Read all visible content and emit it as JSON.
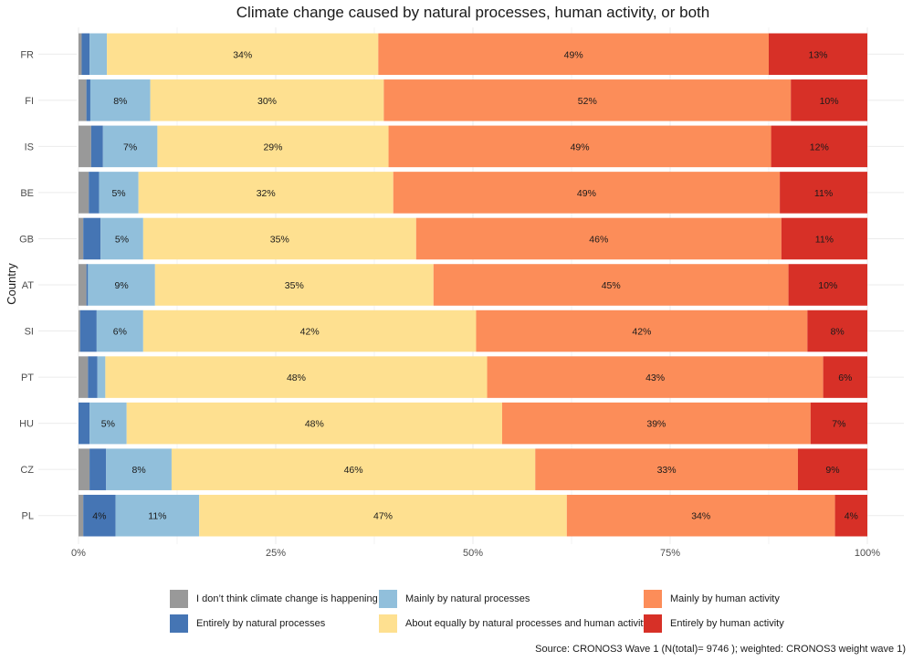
{
  "chart_data": {
    "type": "bar",
    "orientation": "horizontal",
    "stacked": true,
    "title": "Climate change caused by natural processes, human activity, or both",
    "xlabel": "",
    "ylabel": "Country",
    "xlim": [
      0,
      100
    ],
    "x_ticks": [
      "0%",
      "25%",
      "50%",
      "75%",
      "100%"
    ],
    "x_tick_values": [
      0,
      25,
      50,
      75,
      100
    ],
    "grid": true,
    "legend_position": "bottom",
    "categories": [
      "FR",
      "FI",
      "IS",
      "BE",
      "GB",
      "AT",
      "SI",
      "PT",
      "HU",
      "CZ",
      "PL"
    ],
    "series": [
      {
        "name": "I don't think climate change is happening",
        "color": "#999999",
        "values": [
          0.4,
          1.0,
          1.6,
          1.3,
          0.6,
          1.0,
          0.2,
          1.2,
          0.0,
          1.4,
          0.6
        ],
        "labels": [
          "",
          "",
          "",
          "",
          "",
          "",
          "",
          "",
          "",
          "",
          ""
        ]
      },
      {
        "name": "Entirely by natural processes",
        "color": "#4575b4",
        "values": [
          1.0,
          0.5,
          1.5,
          1.3,
          2.2,
          0.2,
          2.1,
          1.2,
          1.4,
          2.1,
          4.1
        ],
        "labels": [
          "",
          "",
          "",
          "",
          "",
          "",
          "",
          "",
          "",
          "",
          "4%"
        ]
      },
      {
        "name": "Mainly by natural processes",
        "color": "#91bfdb",
        "values": [
          2.2,
          7.6,
          6.9,
          5.0,
          5.4,
          8.5,
          5.9,
          1.0,
          4.7,
          8.3,
          10.6
        ],
        "labels": [
          "",
          "8%",
          "7%",
          "5%",
          "5%",
          "9%",
          "6%",
          "",
          "5%",
          "8%",
          "11%"
        ]
      },
      {
        "name": "About equally by natural processes and human activity",
        "color": "#fee090",
        "values": [
          34.4,
          29.6,
          29.3,
          32.3,
          34.6,
          35.3,
          42.2,
          48.4,
          47.6,
          46.1,
          46.6
        ],
        "labels": [
          "34%",
          "30%",
          "29%",
          "32%",
          "35%",
          "35%",
          "42%",
          "48%",
          "48%",
          "46%",
          "47%"
        ]
      },
      {
        "name": "Mainly by human activity",
        "color": "#fc8d59",
        "values": [
          49.5,
          51.6,
          48.5,
          49.0,
          46.3,
          45.0,
          42.0,
          42.6,
          39.1,
          33.3,
          34.0
        ],
        "labels": [
          "49%",
          "52%",
          "49%",
          "49%",
          "46%",
          "45%",
          "42%",
          "43%",
          "39%",
          "33%",
          "34%"
        ]
      },
      {
        "name": "Entirely by human activity",
        "color": "#d73027",
        "values": [
          12.5,
          9.7,
          12.2,
          11.1,
          10.9,
          10.0,
          7.6,
          5.6,
          7.2,
          8.8,
          4.1
        ],
        "labels": [
          "13%",
          "10%",
          "12%",
          "11%",
          "11%",
          "10%",
          "8%",
          "6%",
          "7%",
          "9%",
          "4%"
        ]
      }
    ],
    "caption": "Source: CRONOS3 Wave 1 (N(total)= 9746 ); weighted: CRONOS3 weight wave 1)"
  },
  "legend": {
    "items": [
      {
        "label": "I don’t think climate change is happening",
        "color": "#999999"
      },
      {
        "label": "Entirely by natural processes",
        "color": "#4575b4"
      },
      {
        "label": "Mainly by natural processes",
        "color": "#91bfdb"
      },
      {
        "label": "About equally by natural processes and human activity",
        "color": "#fee090"
      },
      {
        "label": "Mainly by human activity",
        "color": "#fc8d59"
      },
      {
        "label": "Entirely by human activity",
        "color": "#d73027"
      }
    ]
  }
}
